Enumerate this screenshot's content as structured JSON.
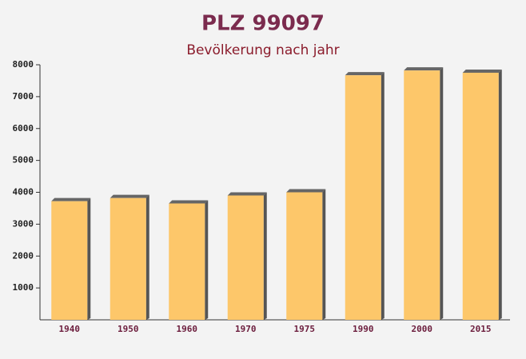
{
  "chart_data": {
    "type": "bar",
    "title": "PLZ 99097",
    "subtitle": "Bevölkerung nach jahr",
    "categories": [
      "1940",
      "1950",
      "1960",
      "1970",
      "1975",
      "1990",
      "2000",
      "2015"
    ],
    "values": [
      3720,
      3820,
      3650,
      3900,
      4000,
      7670,
      7820,
      7750
    ],
    "color": "#fdc76a",
    "ylim": [
      0,
      8000
    ],
    "yticks": [
      1000,
      2000,
      3000,
      4000,
      5000,
      6000,
      7000,
      8000
    ]
  }
}
